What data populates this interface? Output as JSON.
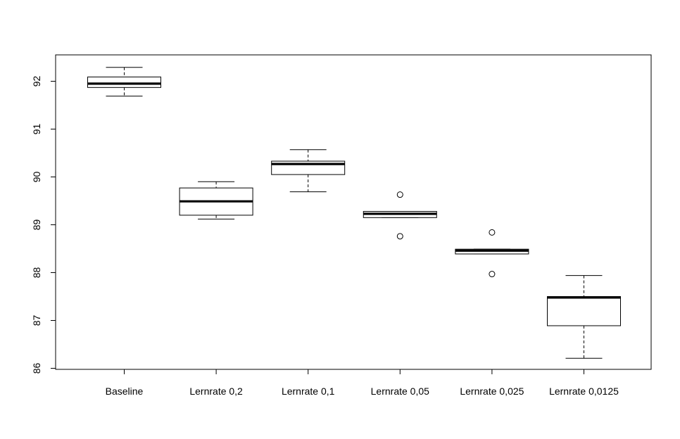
{
  "chart_data": {
    "type": "boxplot",
    "title": "",
    "xlabel": "",
    "ylabel": "",
    "ylim": [
      86,
      92.5
    ],
    "yticks": [
      86,
      87,
      88,
      89,
      90,
      91,
      92
    ],
    "categories": [
      "Baseline",
      "Lernrate 0,2",
      "Lernrate 0,1",
      "Lernrate 0,05",
      "Lernrate 0,025",
      "Lernrate 0,0125"
    ],
    "boxes": [
      {
        "category": "Baseline",
        "whisker_low": 91.69,
        "q1": 91.87,
        "median": 91.95,
        "q3": 92.09,
        "whisker_high": 92.29,
        "outliers": []
      },
      {
        "category": "Lernrate 0,2",
        "whisker_low": 89.12,
        "q1": 89.2,
        "median": 89.49,
        "q3": 89.77,
        "whisker_high": 89.9,
        "outliers": []
      },
      {
        "category": "Lernrate 0,1",
        "whisker_low": 89.69,
        "q1": 90.05,
        "median": 90.27,
        "q3": 90.33,
        "whisker_high": 90.57,
        "outliers": []
      },
      {
        "category": "Lernrate 0,05",
        "whisker_low": 89.15,
        "q1": 89.15,
        "median": 89.23,
        "q3": 89.28,
        "whisker_high": 89.28,
        "outliers": [
          89.63,
          88.76
        ]
      },
      {
        "category": "Lernrate 0,025",
        "whisker_low": 88.39,
        "q1": 88.39,
        "median": 88.46,
        "q3": 88.49,
        "whisker_high": 88.49,
        "outliers": [
          88.84,
          87.97
        ]
      },
      {
        "category": "Lernrate 0,0125",
        "whisker_low": 86.21,
        "q1": 86.89,
        "median": 87.48,
        "q3": 87.5,
        "whisker_high": 87.94,
        "outliers": []
      }
    ]
  }
}
